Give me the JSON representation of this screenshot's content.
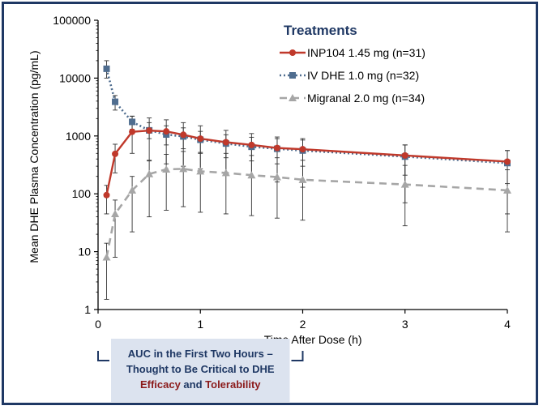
{
  "chart_data": {
    "type": "line",
    "xlabel": "Time After Dose (h)",
    "ylabel": "Mean DHE Plasma Concentration (pg/mL)",
    "xlim": [
      0,
      4
    ],
    "ylim": [
      1,
      100000
    ],
    "y_scale": "log",
    "x_ticks": [
      0,
      1,
      2,
      3,
      4
    ],
    "x_tick_labels": [
      "0",
      "1",
      "2",
      "3",
      "4"
    ],
    "y_ticks": [
      1,
      10,
      100,
      1000,
      10000,
      100000
    ],
    "y_tick_labels": [
      "1",
      "10",
      "100",
      "1000",
      "10000",
      "100000"
    ],
    "grid": false,
    "legend": {
      "title": "Treatments",
      "placement": "top-right"
    },
    "series": [
      {
        "name": "INP104 1.45 mg (n=31)",
        "color": "#c0392b",
        "line_style": "solid",
        "marker": "circle",
        "x": [
          0.0833,
          0.1667,
          0.3333,
          0.5,
          0.6667,
          0.8333,
          1,
          1.25,
          1.5,
          1.75,
          2,
          3,
          4
        ],
        "y": [
          95,
          490,
          1180,
          1240,
          1200,
          1050,
          900,
          780,
          700,
          620,
          590,
          460,
          360
        ],
        "error_low": [
          45,
          230,
          500,
          380,
          330,
          300,
          270,
          230,
          190,
          160,
          130,
          70,
          45
        ],
        "error_high": [
          140,
          720,
          2200,
          2050,
          1900,
          1700,
          1500,
          1250,
          1100,
          960,
          900,
          700,
          560
        ]
      },
      {
        "name": "IV DHE 1.0 mg (n=32)",
        "color": "#4f6d8f",
        "line_style": "dotted",
        "marker": "square",
        "x": [
          0.0833,
          0.1667,
          0.3333,
          0.5,
          0.6667,
          0.8333,
          1,
          1.25,
          1.5,
          1.75,
          2,
          3,
          4
        ],
        "y": [
          14500,
          3900,
          1750,
          1250,
          1060,
          980,
          860,
          740,
          650,
          600,
          560,
          440,
          340
        ],
        "error_low": [
          10000,
          2800,
          1300,
          900,
          700,
          600,
          500,
          420,
          370,
          330,
          300,
          210,
          150
        ],
        "error_high": [
          20000,
          5000,
          2200,
          1700,
          1500,
          1380,
          1200,
          1050,
          950,
          900,
          850,
          700,
          560
        ]
      },
      {
        "name": "Migranal 2.0 mg (n=34)",
        "color": "#a6a6a6",
        "line_style": "dashed",
        "marker": "triangle",
        "x": [
          0.0833,
          0.1667,
          0.3333,
          0.5,
          0.6667,
          0.8333,
          1,
          1.25,
          1.5,
          1.75,
          2,
          3,
          4
        ],
        "y": [
          8,
          45,
          115,
          220,
          265,
          270,
          245,
          230,
          210,
          195,
          175,
          145,
          115
        ],
        "error_low": [
          1.5,
          8,
          22,
          40,
          52,
          60,
          48,
          45,
          42,
          38,
          35,
          28,
          22
        ],
        "error_high": [
          14,
          78,
          200,
          370,
          480,
          540,
          520,
          500,
          460,
          420,
          380,
          310,
          260
        ]
      }
    ],
    "annotation": {
      "line1": "AUC in the First Two Hours –",
      "line2": "Thought to Be Critical to DHE",
      "word_efficacy": "Efficacy",
      "word_and": " and ",
      "word_tolerability": "Tolerability",
      "highlight_color": "#8b1a1a",
      "box_color": "#dce3ef",
      "bracket_x_range": [
        0,
        2
      ]
    }
  }
}
